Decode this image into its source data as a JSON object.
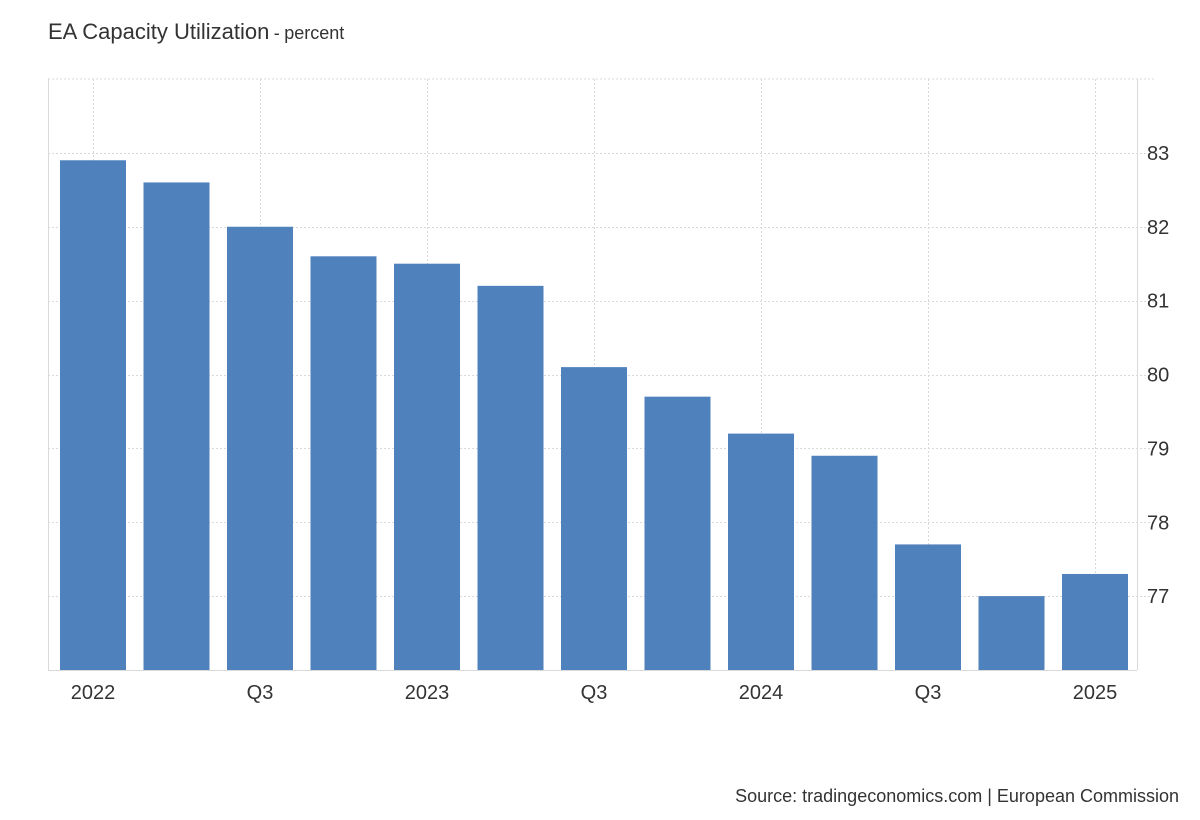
{
  "header": {
    "title": "EA Capacity Utilization",
    "separator": "-",
    "unit": "percent"
  },
  "footer": {
    "source": "Source: tradingeconomics.com | European Commission"
  },
  "chart_data": {
    "type": "bar",
    "title": "EA Capacity Utilization",
    "subtitle": "percent",
    "xlabel": "",
    "ylabel": "",
    "categories": [
      "2022 Q1",
      "2022 Q2",
      "2022 Q3",
      "2022 Q4",
      "2023 Q1",
      "2023 Q2",
      "2023 Q3",
      "2023 Q4",
      "2024 Q1",
      "2024 Q2",
      "2024 Q3",
      "2024 Q4",
      "2025 Q1"
    ],
    "values": [
      82.9,
      82.6,
      82.0,
      81.6,
      81.5,
      81.2,
      80.1,
      79.7,
      79.2,
      78.9,
      77.7,
      77.0,
      77.3
    ],
    "x_tick_labels": [
      {
        "category": "2022 Q1",
        "label": "2022"
      },
      {
        "category": "2022 Q3",
        "label": "Q3"
      },
      {
        "category": "2023 Q1",
        "label": "2023"
      },
      {
        "category": "2023 Q3",
        "label": "Q3"
      },
      {
        "category": "2024 Q1",
        "label": "2024"
      },
      {
        "category": "2024 Q3",
        "label": "Q3"
      },
      {
        "category": "2025 Q1",
        "label": "2025"
      }
    ],
    "y_ticks": [
      77,
      78,
      79,
      80,
      81,
      82,
      83
    ],
    "ylim": [
      76,
      84
    ],
    "y_axis_side": "right",
    "grid": true,
    "bar_color": "#4f81bd",
    "grid_color": "#d9d9d9",
    "axis_color": "#d9d9d9"
  }
}
